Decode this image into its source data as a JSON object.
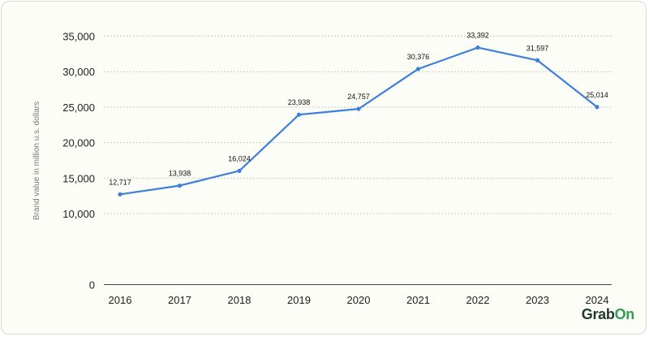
{
  "chart_data": {
    "type": "line",
    "categories": [
      "2016",
      "2017",
      "2018",
      "2019",
      "2020",
      "2021",
      "2022",
      "2023",
      "2024"
    ],
    "values": [
      12717,
      13938,
      16024,
      23938,
      24757,
      30376,
      33392,
      31597,
      25014
    ],
    "data_labels": [
      "12,717",
      "13,938",
      "16,024",
      "23,938",
      "24,757",
      "30,376",
      "33,392",
      "31,597",
      "25,014"
    ],
    "ylabel": "Brand value in million u.s. dollars",
    "xlabel": "",
    "ylim": [
      0,
      35000
    ],
    "yticks": [
      0,
      10000,
      15000,
      20000,
      25000,
      30000,
      35000
    ],
    "ytick_labels": [
      "0",
      "10,000",
      "15,000",
      "20,000",
      "25,000",
      "30,000",
      "35,000"
    ],
    "line_color": "#3f7fdc",
    "grid": "horizontal dotted",
    "legend": "none"
  },
  "watermark": {
    "text": "GrabOn",
    "prefix": "Grab",
    "suffix": "On",
    "accent_color": "#2e9e4f"
  }
}
